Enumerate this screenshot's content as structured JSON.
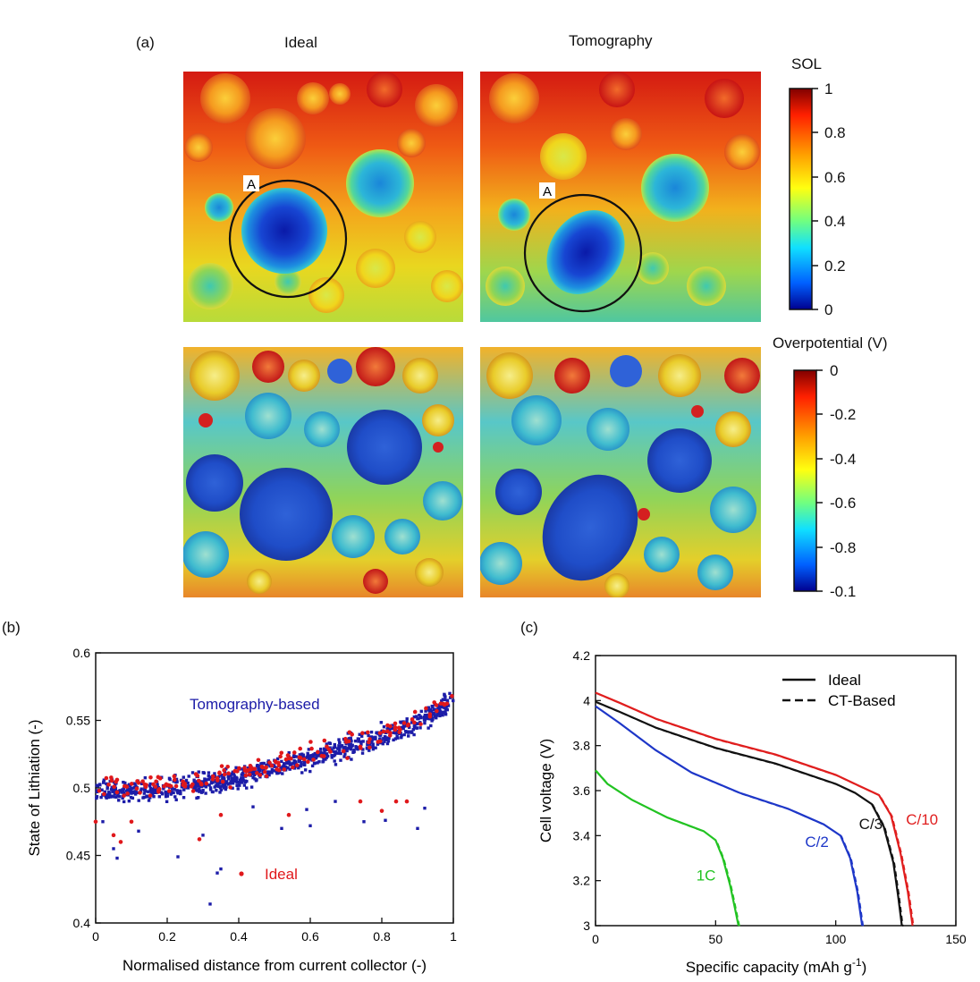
{
  "panel_a": {
    "label": "(a)",
    "col_ideal": "Ideal",
    "col_tomo": "Tomography",
    "marker_ideal": "A",
    "marker_tomo": "A",
    "sol_title": "SOL",
    "sol_ticks": [
      "1",
      "0.8",
      "0.6",
      "0.4",
      "0.2",
      "0"
    ],
    "op_title": "Overpotential (V)",
    "op_ticks": [
      "0",
      "-0.2",
      "-0.4",
      "-0.6",
      "-0.8",
      "-0.1"
    ],
    "colors": {
      "dark_blue": "#00008f",
      "blue": "#1e5dd8",
      "cyan": "#22c3c3",
      "green": "#7bd24a",
      "yellow": "#f4e21c",
      "orange": "#f5a01e",
      "red": "#d7191c"
    }
  },
  "chart_data": [
    {
      "type": "scatter",
      "panel": "(b)",
      "xlabel": "Normalised distance from current collector (-)",
      "ylabel": "State of Lithiation (-)",
      "xlim": [
        0,
        1
      ],
      "ylim": [
        0.4,
        0.6
      ],
      "xticks": [
        "0",
        "0.2",
        "0.4",
        "0.6",
        "0.8",
        "1"
      ],
      "yticks": [
        "0.4",
        "0.45",
        "0.5",
        "0.55",
        "0.6"
      ],
      "series": [
        {
          "name": "Tomography-based",
          "color": "#1c1ca8",
          "trend": [
            [
              0,
              0.497
            ],
            [
              0.2,
              0.499
            ],
            [
              0.4,
              0.507
            ],
            [
              0.6,
              0.522
            ],
            [
              0.8,
              0.538
            ],
            [
              0.9,
              0.547
            ],
            [
              1.0,
              0.565
            ]
          ],
          "outliers": [
            [
              0.02,
              0.475
            ],
            [
              0.05,
              0.455
            ],
            [
              0.06,
              0.448
            ],
            [
              0.12,
              0.468
            ],
            [
              0.23,
              0.449
            ],
            [
              0.32,
              0.414
            ],
            [
              0.34,
              0.437
            ],
            [
              0.35,
              0.44
            ],
            [
              0.3,
              0.465
            ],
            [
              0.52,
              0.47
            ],
            [
              0.6,
              0.472
            ],
            [
              0.75,
              0.475
            ],
            [
              0.81,
              0.476
            ],
            [
              0.9,
              0.47
            ],
            [
              0.92,
              0.485
            ],
            [
              0.67,
              0.49
            ],
            [
              0.44,
              0.486
            ],
            [
              0.59,
              0.484
            ]
          ]
        },
        {
          "name": "Ideal",
          "color": "#e0181b",
          "trend": [
            [
              0,
              0.5
            ],
            [
              0.2,
              0.502
            ],
            [
              0.4,
              0.51
            ],
            [
              0.6,
              0.525
            ],
            [
              0.8,
              0.54
            ],
            [
              0.9,
              0.55
            ],
            [
              1.0,
              0.568
            ]
          ],
          "outliers": [
            [
              0.0,
              0.475
            ],
            [
              0.05,
              0.465
            ],
            [
              0.07,
              0.46
            ],
            [
              0.1,
              0.475
            ],
            [
              0.29,
              0.462
            ],
            [
              0.35,
              0.48
            ],
            [
              0.54,
              0.48
            ],
            [
              0.74,
              0.49
            ],
            [
              0.8,
              0.483
            ],
            [
              0.84,
              0.49
            ],
            [
              0.87,
              0.49
            ]
          ]
        }
      ],
      "legend": {
        "tomo_label": "Tomography-based",
        "ideal_label": "Ideal"
      }
    },
    {
      "type": "line",
      "panel": "(c)",
      "xlabel_main": "Specific capacity (mAh g",
      "xlabel_sup": "-1",
      "xlabel_end": ")",
      "ylabel": "Cell voltage (V)",
      "xlim": [
        0,
        150
      ],
      "ylim": [
        3,
        4.2
      ],
      "xticks": [
        "0",
        "50",
        "100",
        "150"
      ],
      "yticks": [
        "3",
        "3.2",
        "3.4",
        "3.6",
        "3.8",
        "4",
        "4.2"
      ],
      "legend": {
        "solid_label": "Ideal",
        "dashed_label": "CT-Based"
      },
      "series": [
        {
          "name": "C/10",
          "color": "#e01e1e",
          "points": [
            [
              0,
              4.035
            ],
            [
              10,
              3.99
            ],
            [
              25,
              3.92
            ],
            [
              50,
              3.83
            ],
            [
              75,
              3.76
            ],
            [
              100,
              3.67
            ],
            [
              110,
              3.62
            ],
            [
              118,
              3.58
            ],
            [
              123,
              3.49
            ],
            [
              127,
              3.32
            ],
            [
              130,
              3.15
            ],
            [
              132,
              3.0
            ]
          ]
        },
        {
          "name": "C/3",
          "color": "#111111",
          "points": [
            [
              0,
              3.995
            ],
            [
              10,
              3.95
            ],
            [
              25,
              3.88
            ],
            [
              50,
              3.79
            ],
            [
              75,
              3.72
            ],
            [
              100,
              3.63
            ],
            [
              108,
              3.59
            ],
            [
              115,
              3.54
            ],
            [
              120,
              3.44
            ],
            [
              124,
              3.28
            ],
            [
              126,
              3.13
            ],
            [
              127.5,
              3.0
            ]
          ]
        },
        {
          "name": "C/2",
          "color": "#1e37c8",
          "points": [
            [
              0,
              3.975
            ],
            [
              10,
              3.9
            ],
            [
              25,
              3.78
            ],
            [
              40,
              3.68
            ],
            [
              60,
              3.59
            ],
            [
              80,
              3.52
            ],
            [
              95,
              3.45
            ],
            [
              102,
              3.4
            ],
            [
              106,
              3.3
            ],
            [
              109,
              3.15
            ],
            [
              111,
              3.0
            ]
          ]
        },
        {
          "name": "1C",
          "color": "#22c322",
          "points": [
            [
              0,
              3.69
            ],
            [
              5,
              3.63
            ],
            [
              15,
              3.56
            ],
            [
              30,
              3.48
            ],
            [
              45,
              3.42
            ],
            [
              50,
              3.38
            ],
            [
              53,
              3.3
            ],
            [
              56,
              3.18
            ],
            [
              58,
              3.08
            ],
            [
              59.5,
              3.0
            ]
          ]
        }
      ]
    }
  ]
}
